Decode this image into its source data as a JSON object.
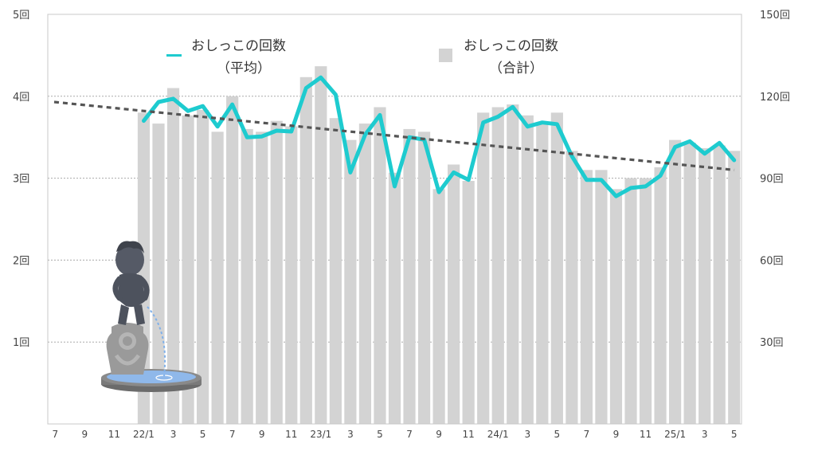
{
  "chart_data": {
    "type": "bar+line",
    "title": "",
    "y_left": {
      "ticks": [
        "1回",
        "2回",
        "3回",
        "4回",
        "5回"
      ],
      "ylim": [
        0,
        5
      ],
      "unit": "回"
    },
    "y_right": {
      "ticks": [
        "30回",
        "60回",
        "90回",
        "120回",
        "150回"
      ],
      "ylim": [
        0,
        150
      ],
      "unit": "回"
    },
    "x_tick_labels": [
      "7",
      "9",
      "11",
      "22/1",
      "3",
      "5",
      "7",
      "9",
      "11",
      "23/1",
      "3",
      "5",
      "7",
      "9",
      "11",
      "24/1",
      "3",
      "5",
      "7",
      "9",
      "11",
      "25/1",
      "3",
      "5"
    ],
    "months": [
      "2021/07",
      "2021/08",
      "2021/09",
      "2021/10",
      "2021/11",
      "2021/12",
      "2022/01",
      "2022/02",
      "2022/03",
      "2022/04",
      "2022/05",
      "2022/06",
      "2022/07",
      "2022/08",
      "2022/09",
      "2022/10",
      "2022/11",
      "2022/12",
      "2023/01",
      "2023/02",
      "2023/03",
      "2023/04",
      "2023/05",
      "2023/06",
      "2023/07",
      "2023/08",
      "2023/09",
      "2023/10",
      "2023/11",
      "2023/12",
      "2024/01",
      "2024/02",
      "2024/03",
      "2024/04",
      "2024/05",
      "2024/06",
      "2024/07",
      "2024/08",
      "2024/09",
      "2024/10",
      "2024/11",
      "2024/12",
      "2025/01",
      "2025/02",
      "2025/03",
      "2025/04",
      "2025/05"
    ],
    "series": [
      {
        "name": "おしっこの回数（合計）",
        "type": "bar",
        "axis": "right",
        "color": "#d3d3d3",
        "values": [
          null,
          null,
          null,
          null,
          null,
          null,
          114,
          110,
          123,
          113,
          115,
          107,
          120,
          108,
          107,
          111,
          109,
          127,
          131,
          112,
          104,
          110,
          116,
          92,
          108,
          107,
          86,
          95,
          89,
          114,
          116,
          117,
          113,
          110,
          114,
          100,
          93,
          93,
          86,
          90,
          90,
          94,
          104,
          103,
          101,
          102,
          100
        ]
      },
      {
        "name": "おしっこの回数（平均）",
        "type": "line",
        "axis": "left",
        "color": "#1ecbcf",
        "values": [
          null,
          null,
          null,
          null,
          null,
          null,
          3.7,
          3.93,
          3.97,
          3.82,
          3.88,
          3.63,
          3.9,
          3.5,
          3.51,
          3.58,
          3.57,
          4.1,
          4.23,
          4.02,
          3.07,
          3.53,
          3.77,
          2.9,
          3.5,
          3.47,
          2.83,
          3.07,
          2.98,
          3.68,
          3.75,
          3.87,
          3.63,
          3.68,
          3.66,
          3.27,
          2.98,
          2.98,
          2.78,
          2.88,
          2.9,
          3.03,
          3.38,
          3.45,
          3.3,
          3.43,
          3.22
        ]
      },
      {
        "name": "trend",
        "type": "line",
        "style": "dashed",
        "axis": "left",
        "color": "#555555",
        "values_start_end": [
          3.93,
          3.1
        ]
      }
    ],
    "legend": {
      "placement": "top-center"
    },
    "grid": true
  },
  "legend": {
    "avg_line1": "おしっこの回数",
    "avg_line2": "（平均）",
    "total_line1": "おしっこの回数",
    "total_line2": "（合計）"
  },
  "decoration": {
    "illustration": "manneken-pis-statue-icon"
  }
}
